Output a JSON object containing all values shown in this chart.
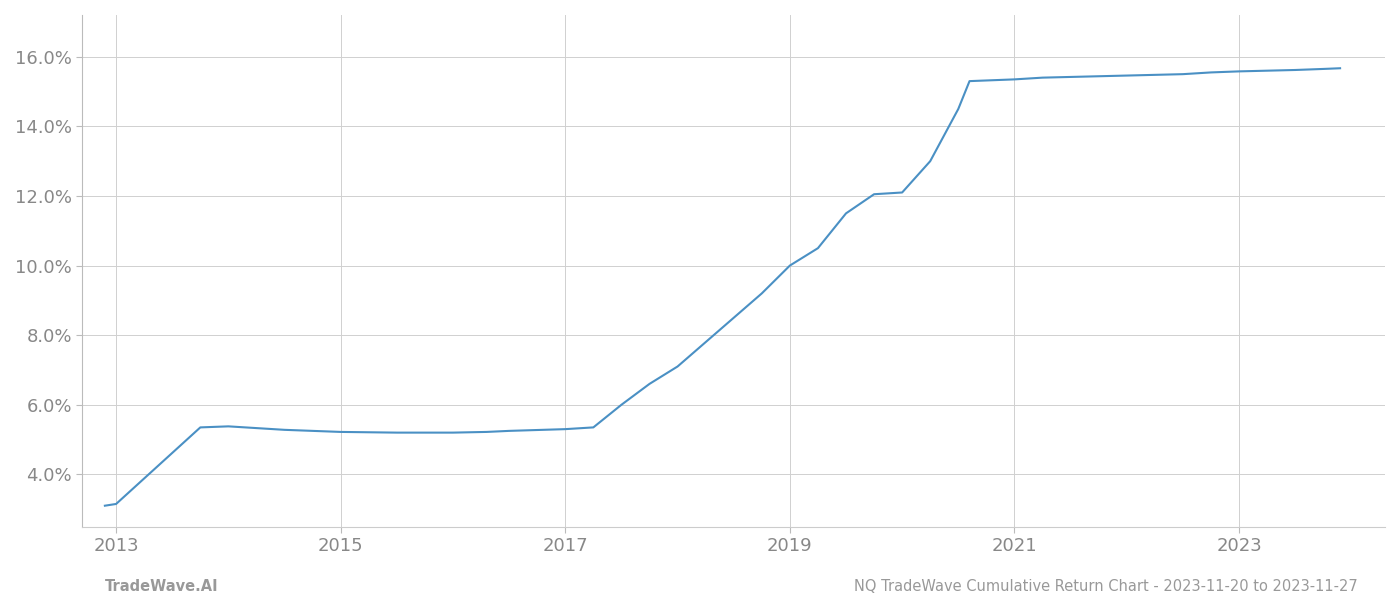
{
  "x_years": [
    2012.9,
    2013.0,
    2013.75,
    2014.0,
    2014.5,
    2015.0,
    2015.5,
    2016.0,
    2016.3,
    2016.5,
    2016.8,
    2017.0,
    2017.25,
    2017.5,
    2017.75,
    2018.0,
    2018.25,
    2018.5,
    2018.75,
    2019.0,
    2019.25,
    2019.5,
    2019.75,
    2020.0,
    2020.25,
    2020.5,
    2020.6,
    2021.0,
    2021.25,
    2021.5,
    2021.75,
    2022.0,
    2022.25,
    2022.5,
    2022.75,
    2023.0,
    2023.25,
    2023.5,
    2023.75,
    2023.9
  ],
  "y_values": [
    3.1,
    3.15,
    5.35,
    5.38,
    5.28,
    5.22,
    5.2,
    5.2,
    5.22,
    5.25,
    5.28,
    5.3,
    5.35,
    6.0,
    6.6,
    7.1,
    7.8,
    8.5,
    9.2,
    10.0,
    10.5,
    11.5,
    12.05,
    12.1,
    13.0,
    14.5,
    15.3,
    15.35,
    15.4,
    15.42,
    15.44,
    15.46,
    15.48,
    15.5,
    15.55,
    15.58,
    15.6,
    15.62,
    15.65,
    15.67
  ],
  "line_color": "#4a90c4",
  "line_width": 1.5,
  "background_color": "#ffffff",
  "grid_color": "#d0d0d0",
  "ytick_labels": [
    "4.0%",
    "6.0%",
    "8.0%",
    "10.0%",
    "12.0%",
    "14.0%",
    "16.0%"
  ],
  "ytick_values": [
    4.0,
    6.0,
    8.0,
    10.0,
    12.0,
    14.0,
    16.0
  ],
  "xtick_values": [
    2013,
    2015,
    2017,
    2019,
    2021,
    2023
  ],
  "xlim": [
    2012.7,
    2024.3
  ],
  "ylim": [
    2.5,
    17.2
  ],
  "footer_left": "TradeWave.AI",
  "footer_right": "NQ TradeWave Cumulative Return Chart - 2023-11-20 to 2023-11-27",
  "footer_color": "#999999",
  "footer_fontsize": 10.5,
  "tick_label_color": "#888888",
  "tick_label_fontsize": 13,
  "left_spine_color": "#bbbbbb",
  "bottom_spine_color": "#cccccc",
  "tick_color": "#bbbbbb"
}
